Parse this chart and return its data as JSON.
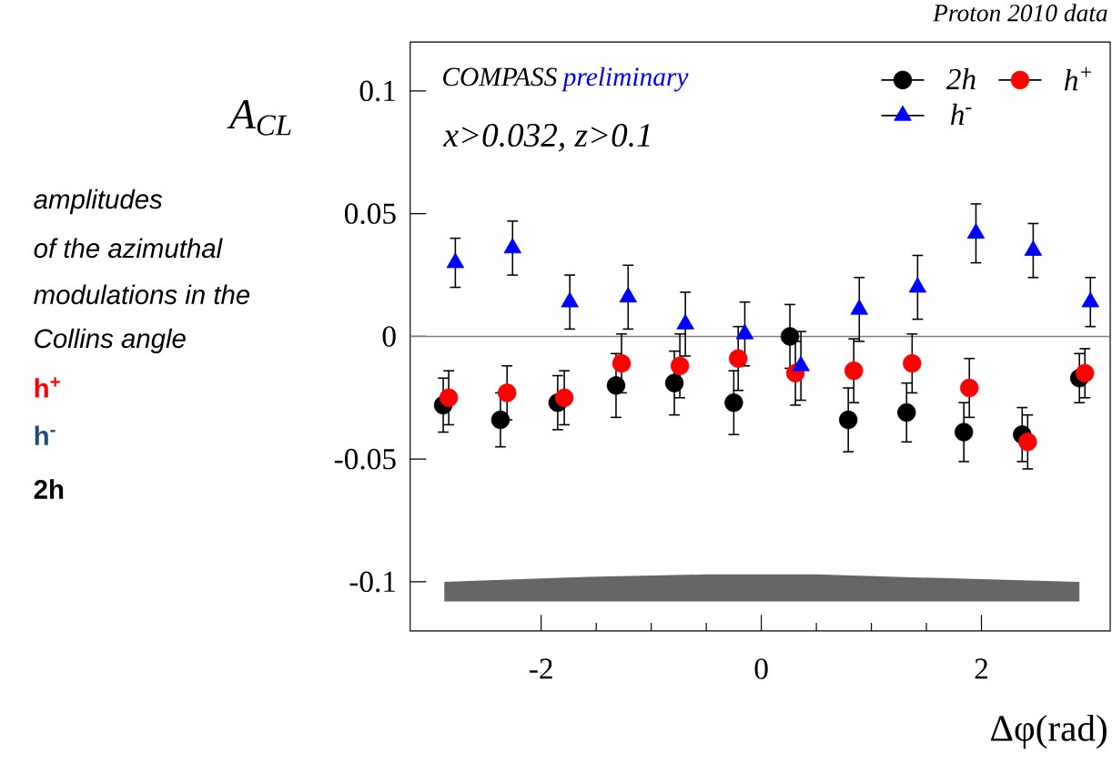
{
  "chart_data": {
    "type": "scatter",
    "xlabel": "Δφ(rad)",
    "ylabel": "A$_{CL}$",
    "xlim": [
      -3.19,
      3.17
    ],
    "ylim": [
      -0.12,
      0.12
    ],
    "xticks": [
      -2,
      0,
      2
    ],
    "yticks": [
      -0.1,
      -0.05,
      0,
      0.05,
      0.1
    ],
    "legend": "top right",
    "annotations": [
      "Proton 2010 data",
      "COMPASS",
      "preliminary",
      "x>0.032, z>0.1",
      "amplitudes",
      "of the azimuthal",
      "modulations in the",
      "Collins angle",
      "h$^{+}$",
      "h$^{-}$",
      "2h"
    ],
    "ref_lines": [
      {
        "axis": "y",
        "value": 0,
        "color": "#808080"
      }
    ],
    "series": [
      {
        "name": "2h",
        "color": "#000000",
        "marker": "circle",
        "x": [
          -2.89,
          -2.37,
          -1.85,
          -1.32,
          -0.79,
          -0.25,
          0.26,
          0.79,
          1.32,
          1.84,
          2.37,
          2.89
        ],
        "values": [
          -0.028,
          -0.034,
          -0.027,
          -0.02,
          -0.019,
          -0.027,
          0.0,
          -0.034,
          -0.031,
          -0.039,
          -0.04,
          -0.017
        ],
        "errors": [
          0.011,
          0.011,
          0.011,
          0.013,
          0.013,
          0.013,
          0.013,
          0.013,
          0.012,
          0.012,
          0.011,
          0.01
        ]
      },
      {
        "name": "h$^{+}$",
        "color": "#ff0000",
        "marker": "circle",
        "x": [
          -2.84,
          -2.31,
          -1.79,
          -1.27,
          -0.74,
          -0.21,
          0.31,
          0.84,
          1.37,
          1.89,
          2.42,
          2.94
        ],
        "values": [
          -0.025,
          -0.023,
          -0.025,
          -0.011,
          -0.012,
          -0.009,
          -0.015,
          -0.014,
          -0.011,
          -0.021,
          -0.043,
          -0.015
        ],
        "errors": [
          0.011,
          0.011,
          0.011,
          0.012,
          0.013,
          0.013,
          0.013,
          0.013,
          0.012,
          0.012,
          0.011,
          0.01
        ]
      },
      {
        "name": "h$^{-}$",
        "color": "#0000ff",
        "marker": "triangle",
        "x": [
          -2.78,
          -2.26,
          -1.74,
          -1.21,
          -0.69,
          -0.15,
          0.36,
          0.89,
          1.42,
          1.95,
          2.47,
          2.99
        ],
        "values": [
          0.03,
          0.036,
          0.014,
          0.016,
          0.005,
          0.001,
          -0.012,
          0.011,
          0.02,
          0.042,
          0.035,
          0.014
        ],
        "errors": [
          0.01,
          0.011,
          0.011,
          0.013,
          0.013,
          0.013,
          0.014,
          0.013,
          0.013,
          0.012,
          0.011,
          0.01
        ]
      },
      {
        "type": "area",
        "color": "#666666",
        "x": [
          -2.88,
          -1.58,
          -0.5,
          0.5,
          1.23,
          2.89,
          2.89,
          -2.88
        ],
        "values": [
          -0.1,
          -0.098,
          -0.097,
          -0.097,
          -0.098,
          -0.1,
          -0.108,
          -0.108
        ]
      }
    ]
  }
}
